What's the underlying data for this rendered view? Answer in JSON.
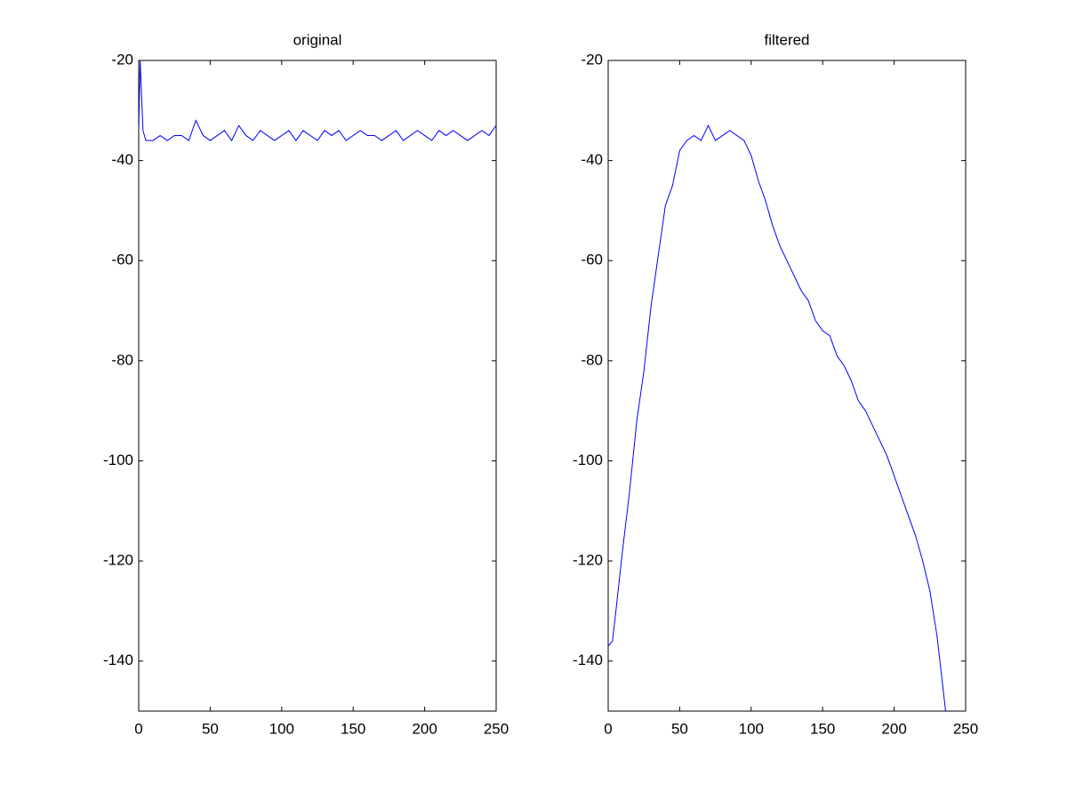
{
  "chart_data": [
    {
      "type": "line",
      "title": "original",
      "color": "#0000ff",
      "x": [
        0,
        1,
        3,
        5,
        10,
        15,
        20,
        25,
        30,
        35,
        40,
        45,
        50,
        55,
        60,
        65,
        70,
        75,
        80,
        85,
        90,
        95,
        100,
        105,
        110,
        115,
        120,
        125,
        130,
        135,
        140,
        145,
        150,
        155,
        160,
        165,
        170,
        175,
        180,
        185,
        190,
        195,
        200,
        205,
        210,
        215,
        220,
        225,
        230,
        235,
        240,
        245,
        250
      ],
      "values": [
        -34,
        -20,
        -34,
        -36,
        -36,
        -35,
        -36,
        -35,
        -35,
        -36,
        -32,
        -35,
        -36,
        -35,
        -34,
        -36,
        -33,
        -35,
        -36,
        -34,
        -35,
        -36,
        -35,
        -34,
        -36,
        -34,
        -35,
        -36,
        -34,
        -35,
        -34,
        -36,
        -35,
        -34,
        -35,
        -35,
        -36,
        -35,
        -34,
        -36,
        -35,
        -34,
        -35,
        -36,
        -34,
        -35,
        -34,
        -35,
        -36,
        -35,
        -34,
        -35,
        -33
      ],
      "xlim": [
        0,
        250
      ],
      "xticks": [
        0,
        50,
        100,
        150,
        200,
        250
      ],
      "ylim": [
        -150,
        -20
      ],
      "yticks": [
        -140,
        -120,
        -100,
        -80,
        -60,
        -40,
        -20
      ]
    },
    {
      "type": "line",
      "title": "filtered",
      "color": "#0000ff",
      "x": [
        0,
        3,
        5,
        10,
        15,
        20,
        25,
        30,
        35,
        40,
        45,
        50,
        55,
        60,
        65,
        70,
        75,
        80,
        85,
        90,
        95,
        100,
        105,
        110,
        115,
        120,
        125,
        130,
        135,
        140,
        145,
        150,
        155,
        160,
        165,
        170,
        175,
        180,
        185,
        190,
        195,
        200,
        205,
        210,
        215,
        220,
        225,
        230,
        236
      ],
      "values": [
        -137,
        -136,
        -131,
        -118,
        -106,
        -92,
        -82,
        -69,
        -59,
        -49,
        -45,
        -38,
        -36,
        -35,
        -36,
        -33,
        -36,
        -35,
        -34,
        -35,
        -36,
        -39,
        -44,
        -48,
        -53,
        -57,
        -60,
        -63,
        -66,
        -68,
        -72,
        -74,
        -75,
        -79,
        -81,
        -84,
        -88,
        -90,
        -93,
        -96,
        -99,
        -103,
        -107,
        -111,
        -115,
        -120,
        -126,
        -135,
        -150
      ],
      "xlim": [
        0,
        250
      ],
      "xticks": [
        0,
        50,
        100,
        150,
        200,
        250
      ],
      "ylim": [
        -150,
        -20
      ],
      "yticks": [
        -140,
        -120,
        -100,
        -80,
        -60,
        -40,
        -20
      ]
    }
  ]
}
